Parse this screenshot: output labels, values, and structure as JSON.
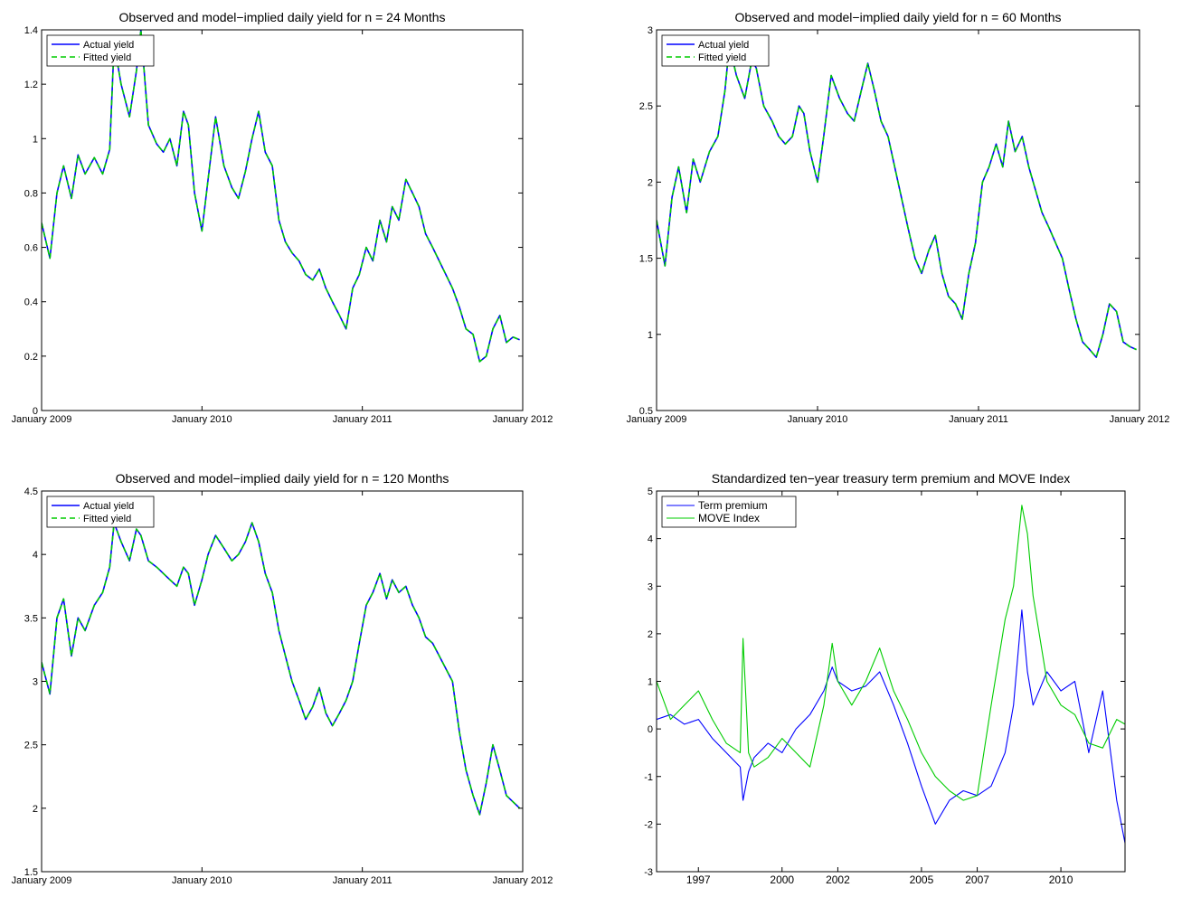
{
  "chart_data": [
    {
      "type": "line",
      "title": "Observed and model−implied daily yield for n = 24 Months",
      "xlabel": "",
      "ylabel": "",
      "xlim": [
        "2009-01-01",
        "2012-01-01"
      ],
      "ylim": [
        0,
        1.4
      ],
      "x_ticks": [
        {
          "label": "January 2009",
          "date": "2009-01-01"
        },
        {
          "label": "January 2010",
          "date": "2010-01-01"
        },
        {
          "label": "January 2011",
          "date": "2011-01-01"
        },
        {
          "label": "January 2012",
          "date": "2012-01-01"
        }
      ],
      "y_ticks": [
        0,
        0.2,
        0.4,
        0.6,
        0.8,
        1,
        1.2,
        1.4
      ],
      "grid": false,
      "legend_position": "top-left",
      "x": [
        "2009-01-01",
        "2009-01-20",
        "2009-02-05",
        "2009-02-20",
        "2009-03-10",
        "2009-03-25",
        "2009-04-10",
        "2009-05-01",
        "2009-05-20",
        "2009-06-05",
        "2009-06-15",
        "2009-07-01",
        "2009-07-20",
        "2009-08-05",
        "2009-08-15",
        "2009-09-01",
        "2009-09-20",
        "2009-10-05",
        "2009-10-20",
        "2009-11-05",
        "2009-11-20",
        "2009-12-01",
        "2009-12-15",
        "2010-01-01",
        "2010-01-15",
        "2010-02-01",
        "2010-02-20",
        "2010-03-10",
        "2010-03-25",
        "2010-04-10",
        "2010-04-25",
        "2010-05-10",
        "2010-05-25",
        "2010-06-10",
        "2010-06-25",
        "2010-07-10",
        "2010-07-25",
        "2010-08-10",
        "2010-08-25",
        "2010-09-10",
        "2010-09-25",
        "2010-10-10",
        "2010-10-25",
        "2010-11-10",
        "2010-11-25",
        "2010-12-10",
        "2010-12-25",
        "2011-01-10",
        "2011-01-25",
        "2011-02-10",
        "2011-02-25",
        "2011-03-10",
        "2011-03-25",
        "2011-04-10",
        "2011-04-25",
        "2011-05-10",
        "2011-05-25",
        "2011-06-10",
        "2011-06-25",
        "2011-07-10",
        "2011-07-25",
        "2011-08-10",
        "2011-08-25",
        "2011-09-10",
        "2011-09-25",
        "2011-10-10",
        "2011-10-25",
        "2011-11-10",
        "2011-11-25",
        "2011-12-10",
        "2011-12-25"
      ],
      "series": [
        {
          "name": "Actual yield",
          "color": "#0000ff",
          "style": "solid",
          "values": [
            0.69,
            0.56,
            0.8,
            0.9,
            0.78,
            0.94,
            0.87,
            0.93,
            0.87,
            0.96,
            1.35,
            1.2,
            1.08,
            1.25,
            1.4,
            1.05,
            0.98,
            0.95,
            1.0,
            0.9,
            1.1,
            1.05,
            0.8,
            0.66,
            0.85,
            1.08,
            0.9,
            0.82,
            0.78,
            0.88,
            1.0,
            1.1,
            0.95,
            0.9,
            0.7,
            0.62,
            0.58,
            0.55,
            0.5,
            0.48,
            0.52,
            0.45,
            0.4,
            0.35,
            0.3,
            0.45,
            0.5,
            0.6,
            0.55,
            0.7,
            0.62,
            0.75,
            0.7,
            0.85,
            0.8,
            0.75,
            0.65,
            0.6,
            0.55,
            0.5,
            0.45,
            0.38,
            0.3,
            0.28,
            0.18,
            0.2,
            0.3,
            0.35,
            0.25,
            0.27,
            0.26
          ]
        },
        {
          "name": "Fitted yield",
          "color": "#00cc00",
          "style": "dashed",
          "values": [
            0.69,
            0.56,
            0.8,
            0.9,
            0.78,
            0.94,
            0.87,
            0.93,
            0.87,
            0.96,
            1.35,
            1.2,
            1.08,
            1.25,
            1.4,
            1.05,
            0.98,
            0.95,
            1.0,
            0.9,
            1.1,
            1.05,
            0.8,
            0.66,
            0.85,
            1.08,
            0.9,
            0.82,
            0.78,
            0.88,
            1.0,
            1.1,
            0.95,
            0.9,
            0.7,
            0.62,
            0.58,
            0.55,
            0.5,
            0.48,
            0.52,
            0.45,
            0.4,
            0.35,
            0.3,
            0.45,
            0.5,
            0.6,
            0.55,
            0.7,
            0.62,
            0.75,
            0.7,
            0.85,
            0.8,
            0.75,
            0.65,
            0.6,
            0.55,
            0.5,
            0.45,
            0.38,
            0.3,
            0.28,
            0.18,
            0.2,
            0.3,
            0.35,
            0.25,
            0.27,
            0.26
          ]
        }
      ]
    },
    {
      "type": "line",
      "title": "Observed and model−implied daily yield for n = 60 Months",
      "xlabel": "",
      "ylabel": "",
      "xlim": [
        "2009-01-01",
        "2012-01-01"
      ],
      "ylim": [
        0.5,
        3
      ],
      "x_ticks": [
        {
          "label": "January 2009",
          "date": "2009-01-01"
        },
        {
          "label": "January 2010",
          "date": "2010-01-01"
        },
        {
          "label": "January 2011",
          "date": "2011-01-01"
        },
        {
          "label": "January 2012",
          "date": "2012-01-01"
        }
      ],
      "y_ticks": [
        0.5,
        1,
        1.5,
        2,
        2.5,
        3
      ],
      "grid": false,
      "legend_position": "top-left",
      "x": [
        "2009-01-01",
        "2009-01-20",
        "2009-02-05",
        "2009-02-20",
        "2009-03-10",
        "2009-03-25",
        "2009-04-10",
        "2009-05-01",
        "2009-05-20",
        "2009-06-05",
        "2009-06-15",
        "2009-07-01",
        "2009-07-20",
        "2009-08-05",
        "2009-08-15",
        "2009-09-01",
        "2009-09-20",
        "2009-10-05",
        "2009-10-20",
        "2009-11-05",
        "2009-11-20",
        "2009-12-01",
        "2009-12-15",
        "2010-01-01",
        "2010-01-15",
        "2010-02-01",
        "2010-02-20",
        "2010-03-10",
        "2010-03-25",
        "2010-04-10",
        "2010-04-25",
        "2010-05-10",
        "2010-05-25",
        "2010-06-10",
        "2010-06-25",
        "2010-07-10",
        "2010-07-25",
        "2010-08-10",
        "2010-08-25",
        "2010-09-10",
        "2010-09-25",
        "2010-10-10",
        "2010-10-25",
        "2010-11-10",
        "2010-11-25",
        "2010-12-10",
        "2010-12-25",
        "2011-01-10",
        "2011-01-25",
        "2011-02-10",
        "2011-02-25",
        "2011-03-10",
        "2011-03-25",
        "2011-04-10",
        "2011-04-25",
        "2011-05-10",
        "2011-05-25",
        "2011-06-10",
        "2011-06-25",
        "2011-07-10",
        "2011-07-25",
        "2011-08-10",
        "2011-08-25",
        "2011-09-10",
        "2011-09-25",
        "2011-10-10",
        "2011-10-25",
        "2011-11-10",
        "2011-11-25",
        "2011-12-10",
        "2011-12-25"
      ],
      "series": [
        {
          "name": "Actual yield",
          "color": "#0000ff",
          "style": "solid",
          "values": [
            1.75,
            1.45,
            1.9,
            2.1,
            1.8,
            2.15,
            2.0,
            2.2,
            2.3,
            2.6,
            2.9,
            2.7,
            2.55,
            2.8,
            2.75,
            2.5,
            2.4,
            2.3,
            2.25,
            2.3,
            2.5,
            2.45,
            2.2,
            2.0,
            2.3,
            2.7,
            2.55,
            2.45,
            2.4,
            2.6,
            2.78,
            2.6,
            2.4,
            2.3,
            2.1,
            1.9,
            1.7,
            1.5,
            1.4,
            1.55,
            1.65,
            1.4,
            1.25,
            1.2,
            1.1,
            1.4,
            1.6,
            2.0,
            2.1,
            2.25,
            2.1,
            2.4,
            2.2,
            2.3,
            2.1,
            1.95,
            1.8,
            1.7,
            1.6,
            1.5,
            1.3,
            1.1,
            0.95,
            0.9,
            0.85,
            1.0,
            1.2,
            1.15,
            0.95,
            0.92,
            0.9
          ]
        },
        {
          "name": "Fitted yield",
          "color": "#00cc00",
          "style": "dashed",
          "values": [
            1.75,
            1.45,
            1.9,
            2.1,
            1.8,
            2.15,
            2.0,
            2.2,
            2.3,
            2.6,
            2.9,
            2.7,
            2.55,
            2.8,
            2.75,
            2.5,
            2.4,
            2.3,
            2.25,
            2.3,
            2.5,
            2.45,
            2.2,
            2.0,
            2.3,
            2.7,
            2.55,
            2.45,
            2.4,
            2.6,
            2.78,
            2.6,
            2.4,
            2.3,
            2.1,
            1.9,
            1.7,
            1.5,
            1.4,
            1.55,
            1.65,
            1.4,
            1.25,
            1.2,
            1.1,
            1.4,
            1.6,
            2.0,
            2.1,
            2.25,
            2.1,
            2.4,
            2.2,
            2.3,
            2.1,
            1.95,
            1.8,
            1.7,
            1.6,
            1.5,
            1.3,
            1.1,
            0.95,
            0.9,
            0.85,
            1.0,
            1.2,
            1.15,
            0.95,
            0.92,
            0.9
          ]
        }
      ]
    },
    {
      "type": "line",
      "title": "Observed and model−implied daily yield for n = 120 Months",
      "xlabel": "",
      "ylabel": "",
      "xlim": [
        "2009-01-01",
        "2012-01-01"
      ],
      "ylim": [
        1.5,
        4.5
      ],
      "x_ticks": [
        {
          "label": "January 2009",
          "date": "2009-01-01"
        },
        {
          "label": "January 2010",
          "date": "2010-01-01"
        },
        {
          "label": "January 2011",
          "date": "2011-01-01"
        },
        {
          "label": "January 2012",
          "date": "2012-01-01"
        }
      ],
      "y_ticks": [
        1.5,
        2,
        2.5,
        3,
        3.5,
        4,
        4.5
      ],
      "grid": false,
      "legend_position": "top-left",
      "x": [
        "2009-01-01",
        "2009-01-20",
        "2009-02-05",
        "2009-02-20",
        "2009-03-10",
        "2009-03-25",
        "2009-04-10",
        "2009-05-01",
        "2009-05-20",
        "2009-06-05",
        "2009-06-15",
        "2009-07-01",
        "2009-07-20",
        "2009-08-05",
        "2009-08-15",
        "2009-09-01",
        "2009-09-20",
        "2009-10-05",
        "2009-10-20",
        "2009-11-05",
        "2009-11-20",
        "2009-12-01",
        "2009-12-15",
        "2010-01-01",
        "2010-01-15",
        "2010-02-01",
        "2010-02-20",
        "2010-03-10",
        "2010-03-25",
        "2010-04-10",
        "2010-04-25",
        "2010-05-10",
        "2010-05-25",
        "2010-06-10",
        "2010-06-25",
        "2010-07-10",
        "2010-07-25",
        "2010-08-10",
        "2010-08-25",
        "2010-09-10",
        "2010-09-25",
        "2010-10-10",
        "2010-10-25",
        "2010-11-10",
        "2010-11-25",
        "2010-12-10",
        "2010-12-25",
        "2011-01-10",
        "2011-01-25",
        "2011-02-10",
        "2011-02-25",
        "2011-03-10",
        "2011-03-25",
        "2011-04-10",
        "2011-04-25",
        "2011-05-10",
        "2011-05-25",
        "2011-06-10",
        "2011-06-25",
        "2011-07-10",
        "2011-07-25",
        "2011-08-10",
        "2011-08-25",
        "2011-09-10",
        "2011-09-25",
        "2011-10-10",
        "2011-10-25",
        "2011-11-10",
        "2011-11-25",
        "2011-12-10",
        "2011-12-25"
      ],
      "series": [
        {
          "name": "Actual yield",
          "color": "#0000ff",
          "style": "solid",
          "values": [
            3.15,
            2.9,
            3.5,
            3.65,
            3.2,
            3.5,
            3.4,
            3.6,
            3.7,
            3.9,
            4.25,
            4.1,
            3.95,
            4.2,
            4.15,
            3.95,
            3.9,
            3.85,
            3.8,
            3.75,
            3.9,
            3.85,
            3.6,
            3.8,
            4.0,
            4.15,
            4.05,
            3.95,
            4.0,
            4.1,
            4.25,
            4.1,
            3.85,
            3.7,
            3.4,
            3.2,
            3.0,
            2.85,
            2.7,
            2.8,
            2.95,
            2.75,
            2.65,
            2.75,
            2.85,
            3.0,
            3.3,
            3.6,
            3.7,
            3.85,
            3.65,
            3.8,
            3.7,
            3.75,
            3.6,
            3.5,
            3.35,
            3.3,
            3.2,
            3.1,
            3.0,
            2.6,
            2.3,
            2.1,
            1.95,
            2.2,
            2.5,
            2.3,
            2.1,
            2.05,
            2.0
          ]
        },
        {
          "name": "Fitted yield",
          "color": "#00cc00",
          "style": "dashed",
          "values": [
            3.15,
            2.9,
            3.5,
            3.65,
            3.2,
            3.5,
            3.4,
            3.6,
            3.7,
            3.9,
            4.25,
            4.1,
            3.95,
            4.2,
            4.15,
            3.95,
            3.9,
            3.85,
            3.8,
            3.75,
            3.9,
            3.85,
            3.6,
            3.8,
            4.0,
            4.15,
            4.05,
            3.95,
            4.0,
            4.1,
            4.25,
            4.1,
            3.85,
            3.7,
            3.4,
            3.2,
            3.0,
            2.85,
            2.7,
            2.8,
            2.95,
            2.75,
            2.65,
            2.75,
            2.85,
            3.0,
            3.3,
            3.6,
            3.7,
            3.85,
            3.65,
            3.8,
            3.7,
            3.75,
            3.6,
            3.5,
            3.35,
            3.3,
            3.2,
            3.1,
            3.0,
            2.6,
            2.3,
            2.1,
            1.95,
            2.2,
            2.5,
            2.3,
            2.1,
            2.05,
            2.0
          ]
        }
      ]
    },
    {
      "type": "line",
      "title": "Standardized ten−year treasury term premium and MOVE Index",
      "xlabel": "",
      "ylabel": "",
      "xlim": [
        1995.5,
        2012.3
      ],
      "ylim": [
        -3,
        5
      ],
      "x_ticks": [
        {
          "label": "1997",
          "value": 1997
        },
        {
          "label": "2000",
          "value": 2000
        },
        {
          "label": "2002",
          "value": 2002
        },
        {
          "label": "2005",
          "value": 2005
        },
        {
          "label": "2007",
          "value": 2007
        },
        {
          "label": "2010",
          "value": 2010
        }
      ],
      "y_ticks": [
        -3,
        -2,
        -1,
        0,
        1,
        2,
        3,
        4,
        5
      ],
      "grid": false,
      "legend_position": "top-left",
      "x": [
        1995.5,
        1996.0,
        1996.5,
        1997.0,
        1997.5,
        1998.0,
        1998.5,
        1998.6,
        1998.8,
        1999.0,
        1999.5,
        2000.0,
        2000.5,
        2001.0,
        2001.5,
        2001.8,
        2002.0,
        2002.5,
        2003.0,
        2003.5,
        2004.0,
        2004.5,
        2005.0,
        2005.5,
        2006.0,
        2006.5,
        2007.0,
        2007.5,
        2008.0,
        2008.3,
        2008.6,
        2008.8,
        2009.0,
        2009.5,
        2010.0,
        2010.5,
        2011.0,
        2011.5,
        2012.0,
        2012.3
      ],
      "series": [
        {
          "name": "Term premium",
          "color": "#0000ff",
          "style": "solid",
          "values": [
            0.2,
            0.3,
            0.1,
            0.2,
            -0.2,
            -0.5,
            -0.8,
            -1.5,
            -0.9,
            -0.6,
            -0.3,
            -0.5,
            0.0,
            0.3,
            0.8,
            1.3,
            1.0,
            0.8,
            0.9,
            1.2,
            0.5,
            -0.3,
            -1.2,
            -2.0,
            -1.5,
            -1.3,
            -1.4,
            -1.2,
            -0.5,
            0.5,
            2.5,
            1.2,
            0.5,
            1.2,
            0.8,
            1.0,
            -0.5,
            0.8,
            -1.5,
            -2.4
          ]
        },
        {
          "name": "MOVE Index",
          "color": "#00cc00",
          "style": "solid",
          "values": [
            1.0,
            0.2,
            0.5,
            0.8,
            0.2,
            -0.3,
            -0.5,
            1.9,
            -0.5,
            -0.8,
            -0.6,
            -0.2,
            -0.5,
            -0.8,
            0.5,
            1.8,
            1.0,
            0.5,
            1.0,
            1.7,
            0.8,
            0.2,
            -0.5,
            -1.0,
            -1.3,
            -1.5,
            -1.4,
            0.5,
            2.3,
            3.0,
            4.7,
            4.1,
            2.8,
            1.0,
            0.5,
            0.3,
            -0.3,
            -0.4,
            0.2,
            0.1
          ]
        }
      ]
    }
  ]
}
